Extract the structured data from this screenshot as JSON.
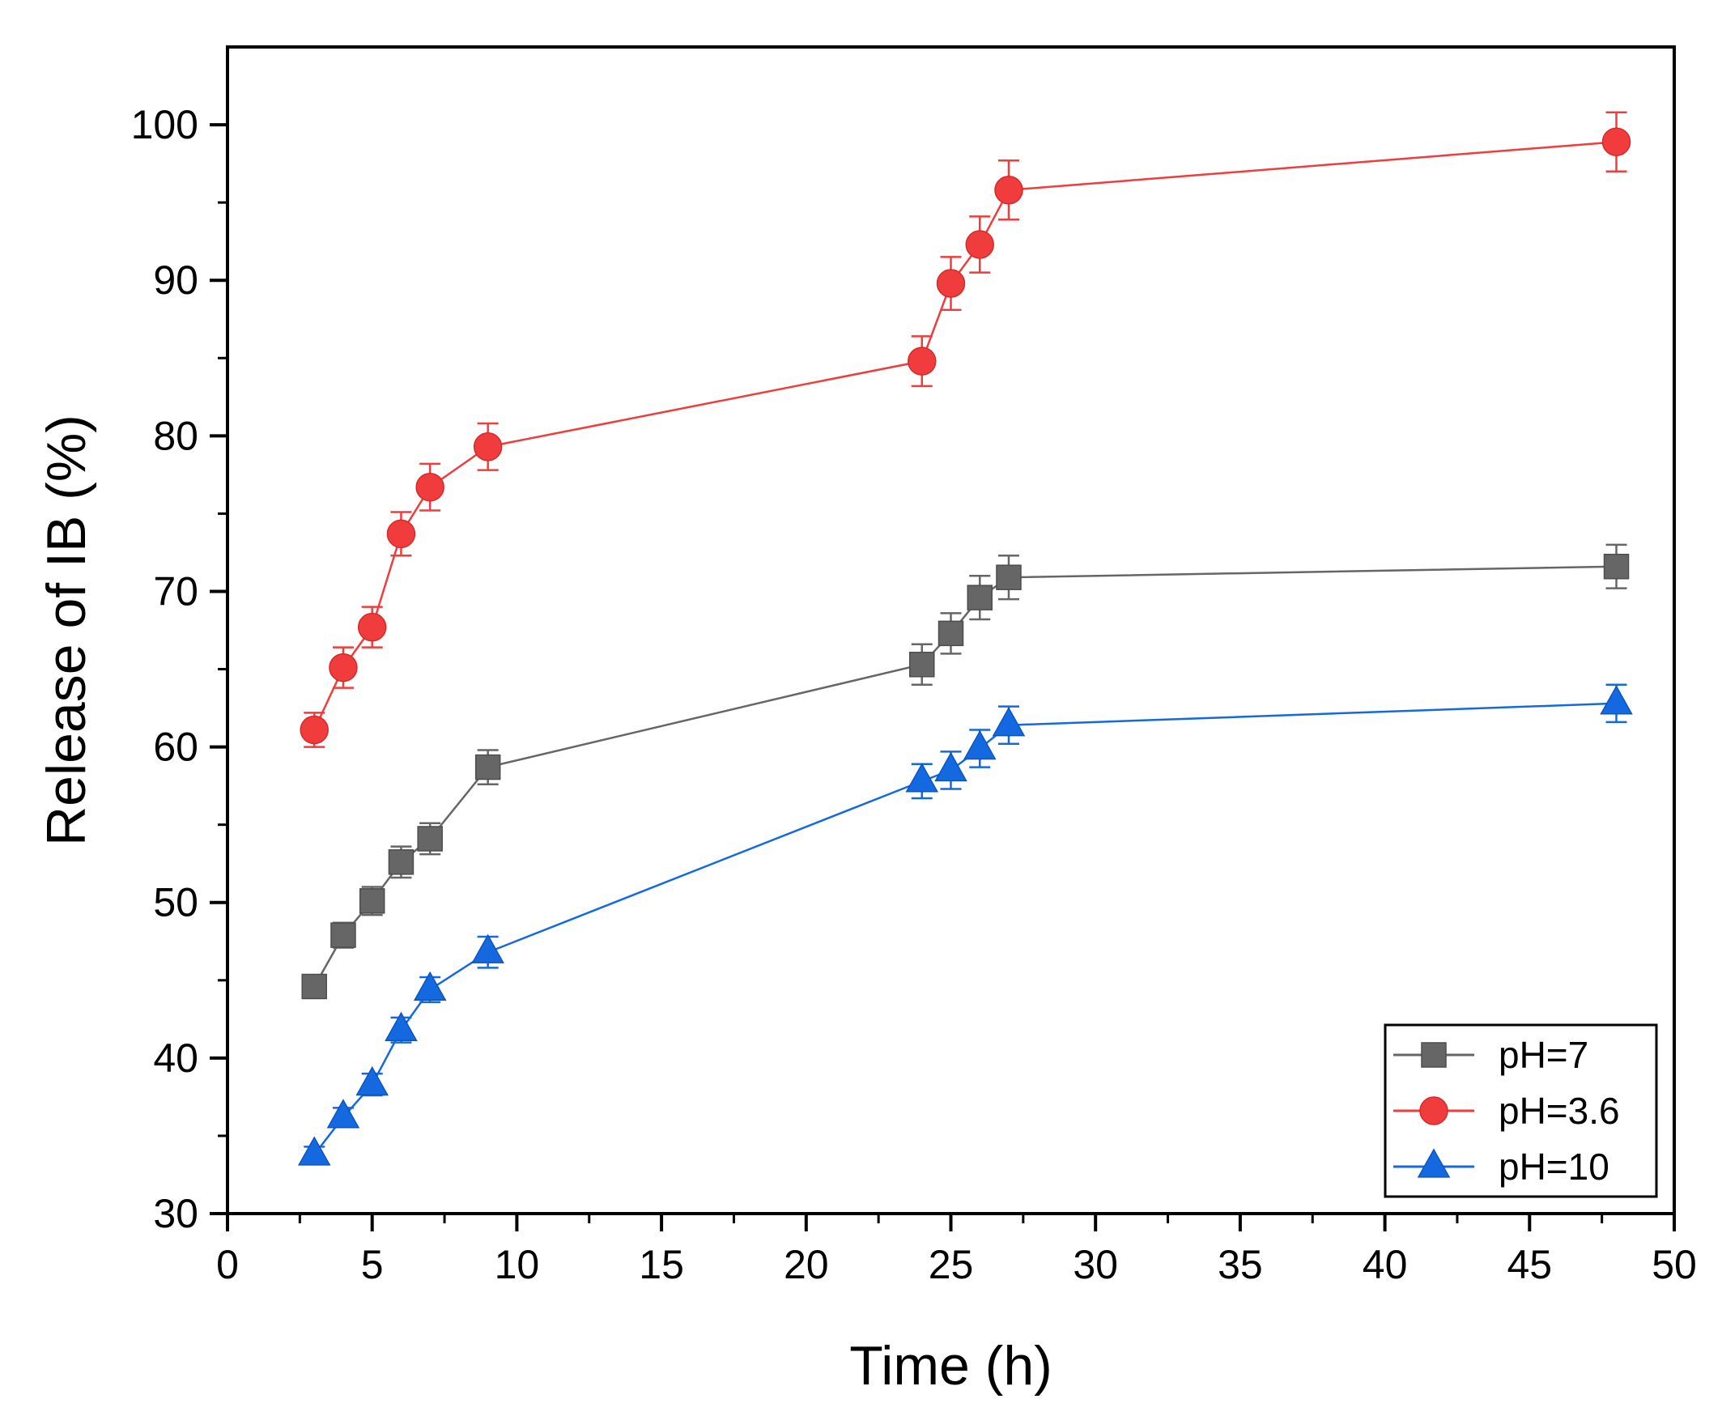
{
  "chart_data": {
    "type": "line",
    "title": "",
    "xlabel": "Time (h)",
    "ylabel": "Release of IB (%)",
    "xlim": [
      0,
      50
    ],
    "ylim": [
      30,
      105
    ],
    "xticks": [
      0,
      5,
      10,
      15,
      20,
      25,
      30,
      35,
      40,
      45,
      50
    ],
    "yticks": [
      30,
      40,
      50,
      60,
      70,
      80,
      90,
      100
    ],
    "x_tick_labels": [
      "0",
      "5",
      "10",
      "15",
      "20",
      "25",
      "30",
      "35",
      "40",
      "45",
      "50"
    ],
    "y_tick_labels": [
      "30",
      "40",
      "50",
      "60",
      "70",
      "80",
      "90",
      "100"
    ],
    "grid": false,
    "legend_position": "bottom-right",
    "x": [
      3,
      4,
      5,
      6,
      7,
      9,
      24,
      25,
      26,
      27,
      48
    ],
    "series": [
      {
        "name": "pH=7",
        "marker": "square",
        "color": "#666666",
        "values": [
          44.6,
          47.9,
          50.1,
          52.6,
          54.1,
          58.7,
          65.3,
          67.3,
          69.6,
          70.9,
          71.6
        ],
        "errors": [
          0.7,
          0.8,
          0.9,
          1.0,
          1.0,
          1.1,
          1.3,
          1.3,
          1.4,
          1.4,
          1.4
        ]
      },
      {
        "name": "pH=3.6",
        "marker": "circle",
        "color": "#f03c3c",
        "values": [
          61.1,
          65.1,
          67.7,
          73.7,
          76.7,
          79.3,
          84.8,
          89.8,
          92.3,
          95.8,
          98.9
        ],
        "errors": [
          1.1,
          1.3,
          1.3,
          1.4,
          1.5,
          1.5,
          1.6,
          1.7,
          1.8,
          1.9,
          1.9
        ]
      },
      {
        "name": "pH=10",
        "marker": "triangle",
        "color": "#1469e0",
        "values": [
          33.8,
          36.2,
          38.3,
          41.8,
          44.4,
          46.8,
          57.8,
          58.5,
          59.9,
          61.4,
          62.8
        ],
        "errors": [
          0.5,
          0.6,
          0.7,
          0.8,
          0.8,
          1.0,
          1.1,
          1.2,
          1.2,
          1.2,
          1.2
        ]
      }
    ]
  }
}
